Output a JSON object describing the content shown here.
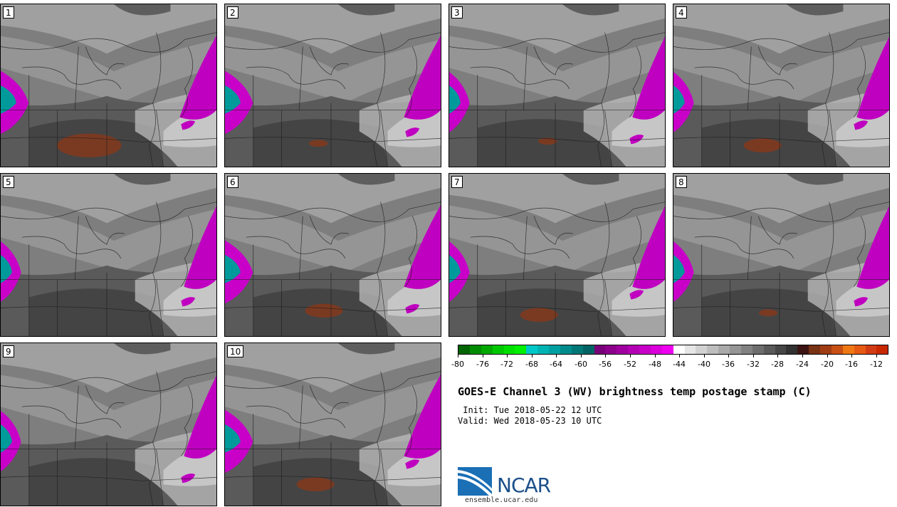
{
  "panels": [
    {
      "label": "1",
      "warm_level": "high",
      "cold_level": "high"
    },
    {
      "label": "2",
      "warm_level": "low",
      "cold_level": "high"
    },
    {
      "label": "3",
      "warm_level": "low",
      "cold_level": "medium"
    },
    {
      "label": "4",
      "warm_level": "medium",
      "cold_level": "medium"
    },
    {
      "label": "5",
      "warm_level": "none",
      "cold_level": "medium"
    },
    {
      "label": "6",
      "warm_level": "medium",
      "cold_level": "high"
    },
    {
      "label": "7",
      "warm_level": "medium",
      "cold_level": "medium"
    },
    {
      "label": "8",
      "warm_level": "low",
      "cold_level": "medium"
    },
    {
      "label": "9",
      "warm_level": "none",
      "cold_level": "medium"
    },
    {
      "label": "10",
      "warm_level": "medium",
      "cold_level": "high"
    }
  ],
  "colorbar": {
    "colors": [
      "#006400",
      "#008c00",
      "#00a800",
      "#00c800",
      "#00e000",
      "#00f000",
      "#00c8c8",
      "#00b4b4",
      "#00a0a0",
      "#008c8c",
      "#007878",
      "#006464",
      "#780078",
      "#8c008c",
      "#a000a0",
      "#b400b4",
      "#c800c8",
      "#dc00dc",
      "#f000f0",
      "#ffffff",
      "#e6e6e6",
      "#d2d2d2",
      "#bebebe",
      "#aaaaaa",
      "#969696",
      "#828282",
      "#6e6e6e",
      "#5a5a5a",
      "#464646",
      "#323232",
      "#3c1414",
      "#783214",
      "#a03c14",
      "#c85014",
      "#f07814",
      "#e65a14",
      "#d23c14",
      "#c82800"
    ],
    "tick_labels": [
      "-80",
      "-76",
      "-72",
      "-68",
      "-64",
      "-60",
      "-56",
      "-52",
      "-48",
      "-44",
      "-40",
      "-36",
      "-32",
      "-28",
      "-24",
      "-20",
      "-16",
      "-12"
    ],
    "range": [
      -80,
      -10
    ]
  },
  "title": "GOES-E Channel 3 (WV) brightness temp postage stamp (C)",
  "init_line": " Init: Tue 2018-05-22 12 UTC",
  "valid_line": "Valid: Wed 2018-05-23 10 UTC",
  "logo_text": "NCAR",
  "url": "ensemble.ucar.edu"
}
